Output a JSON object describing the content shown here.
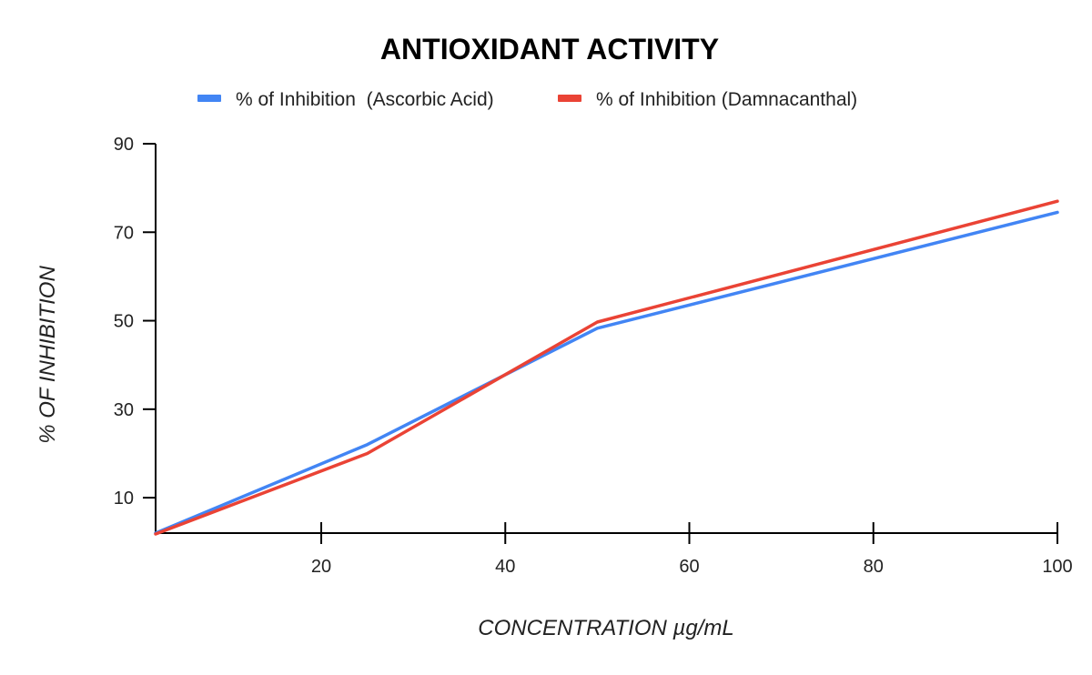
{
  "chart_data": {
    "type": "line",
    "title": "ANTIOXIDANT ACTIVITY",
    "xlabel": "CONCENTRATION µg/mL",
    "ylabel": "% OF INHIBITION",
    "xlim": [
      2,
      100
    ],
    "ylim": [
      2,
      90
    ],
    "x_ticks": [
      20,
      40,
      60,
      80,
      100
    ],
    "y_ticks": [
      10,
      30,
      50,
      70,
      90
    ],
    "grid": false,
    "legend_position": "top",
    "x": [
      2,
      25,
      50,
      100
    ],
    "series": [
      {
        "name": "% of Inhibition  (Ascorbic Acid)",
        "color": "#4285f4",
        "values": [
          2,
          22,
          48.3,
          74.5
        ]
      },
      {
        "name": "% of Inhibition (Damnacanthal)",
        "color": "#ea4335",
        "values": [
          1.8,
          20,
          49.7,
          77
        ]
      }
    ]
  }
}
